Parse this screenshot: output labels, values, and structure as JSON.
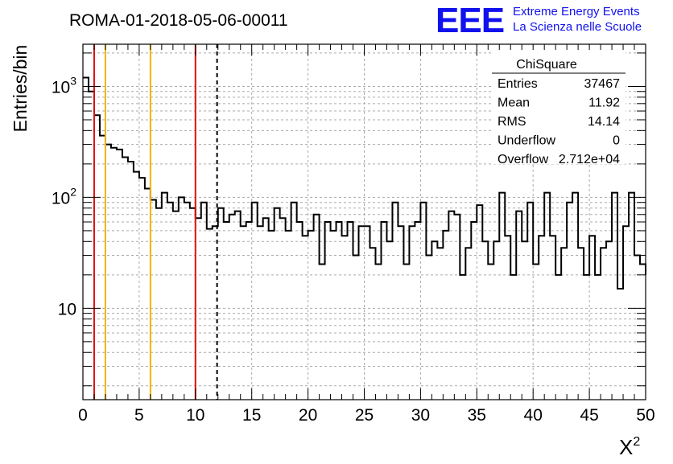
{
  "chart_data": {
    "type": "histogram",
    "title": "ROMA-01-2018-05-06-00011",
    "xlabel": "X",
    "xlabel_superscript": "2",
    "ylabel": "Entries/bin",
    "xlim": [
      0,
      50
    ],
    "ylim": [
      1.5,
      2400
    ],
    "ylog": true,
    "grid": true,
    "x_ticks": [
      0,
      5,
      10,
      15,
      20,
      25,
      30,
      35,
      40,
      45,
      50
    ],
    "y_ticks": [
      {
        "value": 10,
        "base": "10",
        "exp": ""
      },
      {
        "value": 100,
        "base": "10",
        "exp": "2"
      },
      {
        "value": 1000,
        "base": "10",
        "exp": "3"
      }
    ],
    "bin_width": 0.5,
    "x_start": 0,
    "values": [
      1200,
      900,
      550,
      360,
      300,
      280,
      270,
      230,
      210,
      170,
      150,
      120,
      95,
      80,
      110,
      90,
      75,
      100,
      90,
      80,
      65,
      90,
      52,
      55,
      80,
      60,
      70,
      75,
      55,
      60,
      90,
      55,
      65,
      50,
      80,
      65,
      50,
      90,
      60,
      45,
      50,
      70,
      25,
      60,
      50,
      60,
      45,
      60,
      30,
      55,
      55,
      35,
      25,
      60,
      40,
      90,
      55,
      25,
      55,
      60,
      90,
      30,
      40,
      35,
      50,
      75,
      70,
      20,
      35,
      60,
      85,
      40,
      25,
      40,
      110,
      45,
      20,
      75,
      40,
      90,
      25,
      45,
      110,
      45,
      20,
      35,
      90,
      110,
      35,
      20,
      45,
      20,
      35,
      40,
      110,
      15,
      55,
      110,
      30,
      25,
      20
    ],
    "vertical_lines": [
      {
        "x": 1,
        "color": "#dd1111",
        "style": "solid"
      },
      {
        "x": 2,
        "color": "#f2b400",
        "style": "solid"
      },
      {
        "x": 6,
        "color": "#f2b400",
        "style": "solid"
      },
      {
        "x": 10,
        "color": "#dd1111",
        "style": "solid"
      },
      {
        "x": 11.92,
        "color": "#000000",
        "style": "dashed"
      }
    ],
    "stats_box": {
      "title": "ChiSquare",
      "rows": [
        {
          "label": "Entries",
          "value": "37467"
        },
        {
          "label": "Mean",
          "value": "11.92"
        },
        {
          "label": "RMS",
          "value": "14.14"
        },
        {
          "label": "Underflow",
          "value": "0"
        },
        {
          "label": "Overflow",
          "value": "2.712e+04"
        }
      ]
    }
  },
  "logo": {
    "mark": "EEE",
    "line1": "Extreme Energy Events",
    "line2": "La Scienza nelle Scuole",
    "color": "#1111ee"
  }
}
